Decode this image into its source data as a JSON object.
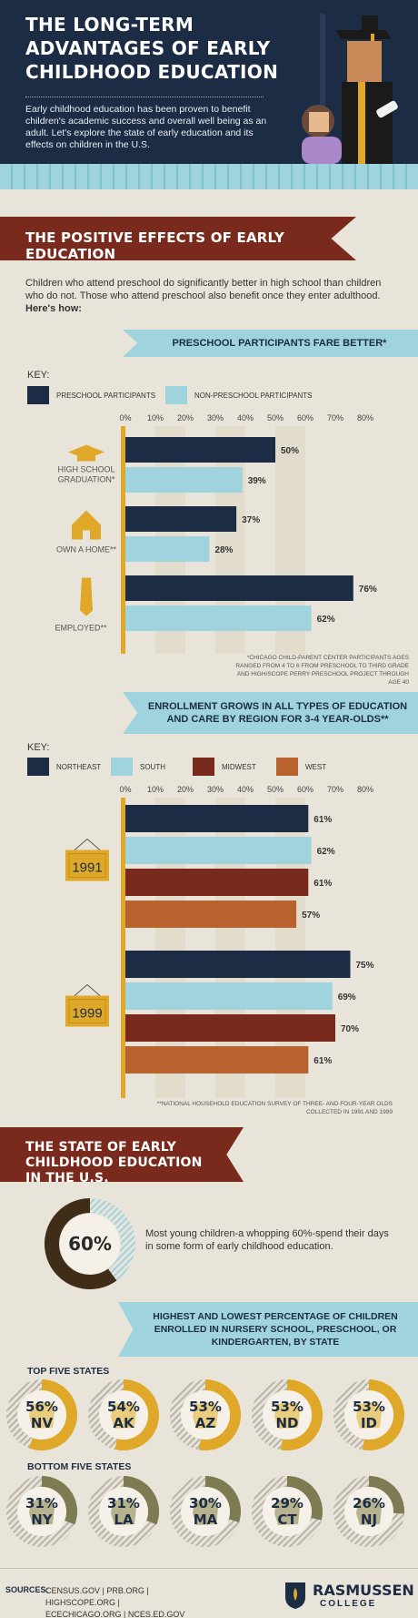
{
  "header": {
    "title": "THE LONG-TERM ADVANTAGES OF EARLY CHILDHOOD EDUCATION",
    "intro": "Early childhood education has been proven to benefit children's academic success and overall well being as an adult. Let's explore the state of early education and its effects on children in the U.S."
  },
  "colors": {
    "navy": "#1c2c44",
    "light_blue": "#9fd4df",
    "dark_red": "#7a2a1c",
    "orange": "#b8622e",
    "gold": "#e0a828",
    "olive": "#7d7b52"
  },
  "section1": {
    "ribbon": "THE POSITIVE EFFECTS OF EARLY EDUCATION",
    "intro": "Children who attend preschool do significantly better in high school than children who do not. Those who attend preschool also benefit once they enter adulthood.",
    "intro_bold": "Here's how:"
  },
  "chart1_banner": "PRESCHOOL PARTICIPANTS FARE BETTER*",
  "chart1_key": {
    "label": "KEY:",
    "a": "PRESCHOOL PARTICIPANTS",
    "b": "NON-PRESCHOOL PARTICIPANTS"
  },
  "chart1_footnote": "*CHICAGO CHILD-PARENT CENTER PARTICIPANTS AGES RANGED FROM 4 TO 6 FROM PRESCHOOL TO THIRD GRADE AND HIGH/SCOPE PERRY PRESCHOOL PROJECT THROUGH AGE 40",
  "chart2_banner": "ENROLLMENT GROWS IN ALL TYPES OF EDUCATION AND CARE  BY REGION FOR 3-4 YEAR-OLDS**",
  "chart2_key": {
    "label": "KEY:",
    "a": "NORTHEAST",
    "b": "SOUTH",
    "c": "MIDWEST",
    "d": "WEST"
  },
  "chart2_footnote": "**NATIONAL HOUSEHOLD EDUCATION SURVEY OF THREE- AND FOUR-YEAR OLDS COLLECTED IN 1991 AND 1999",
  "chart_data": [
    {
      "type": "bar",
      "orientation": "horizontal",
      "x_ticks": [
        "0%",
        "10%",
        "20%",
        "30%",
        "40%",
        "50%",
        "60%",
        "70%",
        "80%"
      ],
      "xlim": [
        0,
        80
      ],
      "categories": [
        "HIGH SCHOOL GRADUATION*",
        "OWN A HOME**",
        "EMPLOYED**"
      ],
      "series": [
        {
          "name": "PRESCHOOL PARTICIPANTS",
          "color": "#1c2c44",
          "values": [
            50,
            37,
            76
          ],
          "labels": [
            "50%",
            "37%",
            "76%"
          ]
        },
        {
          "name": "NON-PRESCHOOL PARTICIPANTS",
          "color": "#9fd4df",
          "values": [
            39,
            28,
            62
          ],
          "labels": [
            "39%",
            "28%",
            "62%"
          ]
        }
      ],
      "legend": "top-left",
      "grid": true
    },
    {
      "type": "bar",
      "orientation": "horizontal",
      "x_ticks": [
        "0%",
        "10%",
        "20%",
        "30%",
        "40%",
        "50%",
        "60%",
        "70%",
        "80%"
      ],
      "xlim": [
        0,
        80
      ],
      "categories": [
        "1991",
        "1999"
      ],
      "series": [
        {
          "name": "NORTHEAST",
          "color": "#1c2c44",
          "values": [
            61,
            75
          ],
          "labels": [
            "61%",
            "75%"
          ]
        },
        {
          "name": "SOUTH",
          "color": "#9fd4df",
          "values": [
            62,
            69
          ],
          "labels": [
            "62%",
            "69%"
          ]
        },
        {
          "name": "MIDWEST",
          "color": "#7a2a1c",
          "values": [
            61,
            70
          ],
          "labels": [
            "61%",
            "70%"
          ]
        },
        {
          "name": "WEST",
          "color": "#b8622e",
          "values": [
            57,
            61
          ],
          "labels": [
            "57%",
            "61%"
          ]
        }
      ],
      "legend": "top-left",
      "grid": true
    },
    {
      "type": "pie",
      "style": "donut",
      "values": [
        60,
        40
      ],
      "center_label": "60%"
    }
  ],
  "section2": {
    "ribbon": "THE STATE OF EARLY CHILDHOOD EDUCATION IN THE U.S.",
    "donut_text": "Most young children-a whopping 60%-spend their days in some form of early childhood education."
  },
  "states_banner": "HIGHEST AND LOWEST PERCENTAGE OF CHILDREN ENROLLED IN NURSERY SCHOOL, PRESCHOOL, OR KINDERGARTEN, BY STATE",
  "top_states": {
    "label": "TOP FIVE STATES",
    "items": [
      {
        "pct": "56%",
        "code": "NV",
        "value": 56
      },
      {
        "pct": "54%",
        "code": "AK",
        "value": 54
      },
      {
        "pct": "53%",
        "code": "AZ",
        "value": 53
      },
      {
        "pct": "53%",
        "code": "ND",
        "value": 53
      },
      {
        "pct": "53%",
        "code": "ID",
        "value": 53
      }
    ]
  },
  "bottom_states": {
    "label": "BOTTOM FIVE STATES",
    "items": [
      {
        "pct": "31%",
        "code": "NY",
        "value": 31
      },
      {
        "pct": "31%",
        "code": "LA",
        "value": 31
      },
      {
        "pct": "30%",
        "code": "MA",
        "value": 30
      },
      {
        "pct": "29%",
        "code": "CT",
        "value": 29
      },
      {
        "pct": "26%",
        "code": "NJ",
        "value": 26
      }
    ]
  },
  "footer": {
    "sources_label": "SOURCES:",
    "sources_line1": "CENSUS.GOV | PRB.ORG | HIGHSCOPE.ORG |",
    "sources_line2": "ECECHICAGO.ORG | NCES.ED.GOV",
    "logo_name": "RASMUSSEN",
    "logo_sub": "COLLEGE"
  }
}
